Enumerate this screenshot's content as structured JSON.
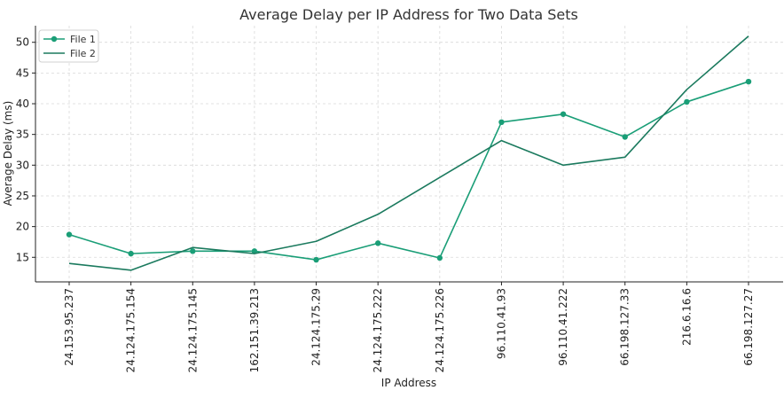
{
  "chart_data": {
    "type": "line",
    "title": "Average Delay per IP Address for Two Data Sets",
    "xlabel": "IP Address",
    "ylabel": "Average Delay (ms)",
    "categories": [
      "24.153.95.237",
      "24.124.175.154",
      "24.124.175.145",
      "162.151.39.213",
      "24.124.175.29",
      "24.124.175.222",
      "24.124.175.226",
      "96.110.41.93",
      "96.110.41.222",
      "66.198.127.33",
      "216.6.16.6",
      "66.198.127.27"
    ],
    "ylim": [
      11.0,
      52.7
    ],
    "yticks": [
      15,
      20,
      25,
      30,
      35,
      40,
      45,
      50
    ],
    "grid": true,
    "legend_position": "top-left",
    "series": [
      {
        "name": "File 1",
        "color": "#1a9e77",
        "marker": "circle",
        "values": [
          18.7,
          15.6,
          16.0,
          16.0,
          14.6,
          17.3,
          14.9,
          37.0,
          38.3,
          34.6,
          40.3,
          43.6
        ]
      },
      {
        "name": "File 2",
        "color": "#1b7a5e",
        "marker": "none",
        "values": [
          14.0,
          12.9,
          16.6,
          15.6,
          17.6,
          22.0,
          28.0,
          34.0,
          30.0,
          31.3,
          42.3,
          51.0
        ]
      }
    ]
  }
}
